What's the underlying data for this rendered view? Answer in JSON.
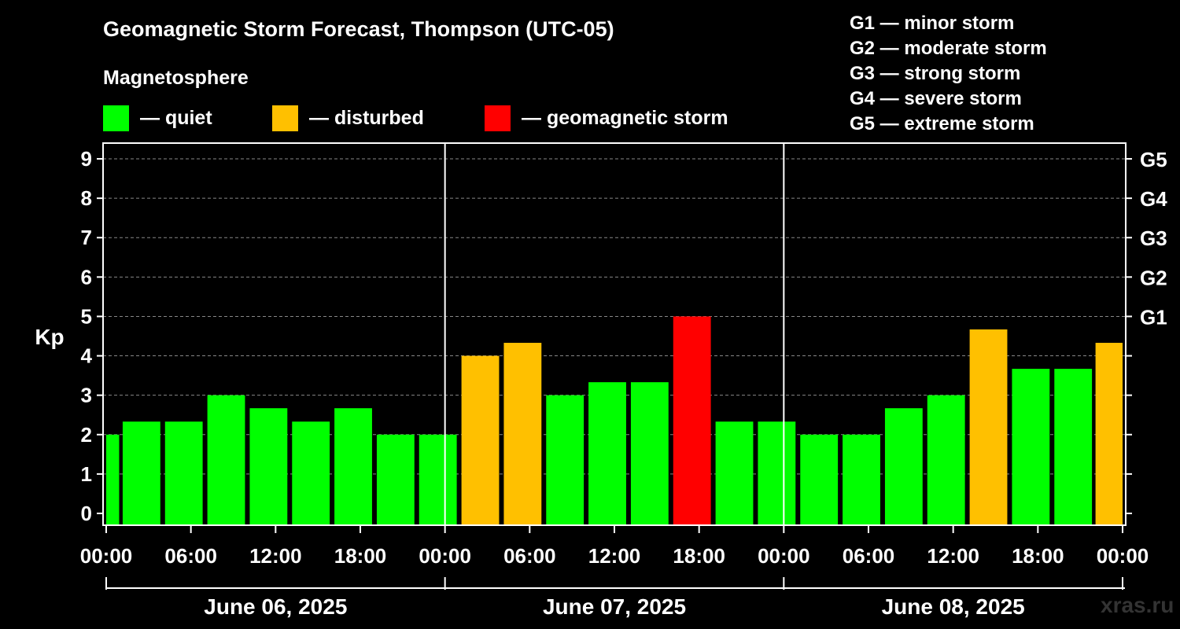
{
  "title": "Geomagnetic Storm Forecast, Thompson (UTC-05)",
  "legend": {
    "heading": "Magnetosphere",
    "items": [
      {
        "label": "— quiet",
        "color": "#00ff00"
      },
      {
        "label": "— disturbed",
        "color": "#ffc000"
      },
      {
        "label": "— geomagnetic storm",
        "color": "#ff0000"
      }
    ]
  },
  "g_scale": [
    "G1 — minor storm",
    "G2 — moderate storm",
    "G3 — strong storm",
    "G4 — severe storm",
    "G5 — extreme storm"
  ],
  "watermark": "xras.ru",
  "chart_data": {
    "type": "bar",
    "title": "Geomagnetic Storm Forecast, Thompson (UTC-05)",
    "ylabel": "Kp",
    "ylim": [
      -0.3,
      9.4
    ],
    "yticks": [
      0,
      1,
      2,
      3,
      4,
      5,
      6,
      7,
      8,
      9
    ],
    "right_axis_labels": [
      {
        "kp": 5,
        "label": "G1"
      },
      {
        "kp": 6,
        "label": "G2"
      },
      {
        "kp": 7,
        "label": "G3"
      },
      {
        "kp": 8,
        "label": "G4"
      },
      {
        "kp": 9,
        "label": "G5"
      }
    ],
    "x_hours_range": [
      0,
      72
    ],
    "xtick_hours": [
      0,
      6,
      12,
      18,
      24,
      30,
      36,
      42,
      48,
      54,
      60,
      66,
      72
    ],
    "xtick_labels": [
      "00:00",
      "06:00",
      "12:00",
      "18:00",
      "00:00",
      "06:00",
      "12:00",
      "18:00",
      "00:00",
      "06:00",
      "12:00",
      "18:00",
      "00:00"
    ],
    "day_boundaries_hours": [
      24,
      48
    ],
    "days": [
      "June 06, 2025",
      "June 07, 2025",
      "June 08, 2025"
    ],
    "bars": [
      {
        "start": 0,
        "end": 1,
        "kp": 2.0,
        "level": "quiet"
      },
      {
        "start": 1,
        "end": 4,
        "kp": 2.33,
        "level": "quiet"
      },
      {
        "start": 4,
        "end": 7,
        "kp": 2.33,
        "level": "quiet"
      },
      {
        "start": 7,
        "end": 10,
        "kp": 3.0,
        "level": "quiet"
      },
      {
        "start": 10,
        "end": 13,
        "kp": 2.67,
        "level": "quiet"
      },
      {
        "start": 13,
        "end": 16,
        "kp": 2.33,
        "level": "quiet"
      },
      {
        "start": 16,
        "end": 19,
        "kp": 2.67,
        "level": "quiet"
      },
      {
        "start": 19,
        "end": 22,
        "kp": 2.0,
        "level": "quiet"
      },
      {
        "start": 22,
        "end": 25,
        "kp": 2.0,
        "level": "quiet"
      },
      {
        "start": 25,
        "end": 28,
        "kp": 4.0,
        "level": "disturbed"
      },
      {
        "start": 28,
        "end": 31,
        "kp": 4.33,
        "level": "disturbed"
      },
      {
        "start": 31,
        "end": 34,
        "kp": 3.0,
        "level": "quiet"
      },
      {
        "start": 34,
        "end": 37,
        "kp": 3.33,
        "level": "quiet"
      },
      {
        "start": 37,
        "end": 40,
        "kp": 3.33,
        "level": "quiet"
      },
      {
        "start": 40,
        "end": 43,
        "kp": 5.0,
        "level": "storm"
      },
      {
        "start": 43,
        "end": 46,
        "kp": 2.33,
        "level": "quiet"
      },
      {
        "start": 46,
        "end": 49,
        "kp": 2.33,
        "level": "quiet"
      },
      {
        "start": 49,
        "end": 52,
        "kp": 2.0,
        "level": "quiet"
      },
      {
        "start": 52,
        "end": 55,
        "kp": 2.0,
        "level": "quiet"
      },
      {
        "start": 55,
        "end": 58,
        "kp": 2.67,
        "level": "quiet"
      },
      {
        "start": 58,
        "end": 61,
        "kp": 3.0,
        "level": "quiet"
      },
      {
        "start": 61,
        "end": 64,
        "kp": 4.67,
        "level": "disturbed"
      },
      {
        "start": 64,
        "end": 67,
        "kp": 3.67,
        "level": "quiet"
      },
      {
        "start": 67,
        "end": 70,
        "kp": 3.67,
        "level": "quiet"
      },
      {
        "start": 70,
        "end": 72,
        "kp": 4.33,
        "level": "disturbed"
      }
    ],
    "level_colors": {
      "quiet": "#00ff00",
      "disturbed": "#ffc000",
      "storm": "#ff0000"
    }
  }
}
